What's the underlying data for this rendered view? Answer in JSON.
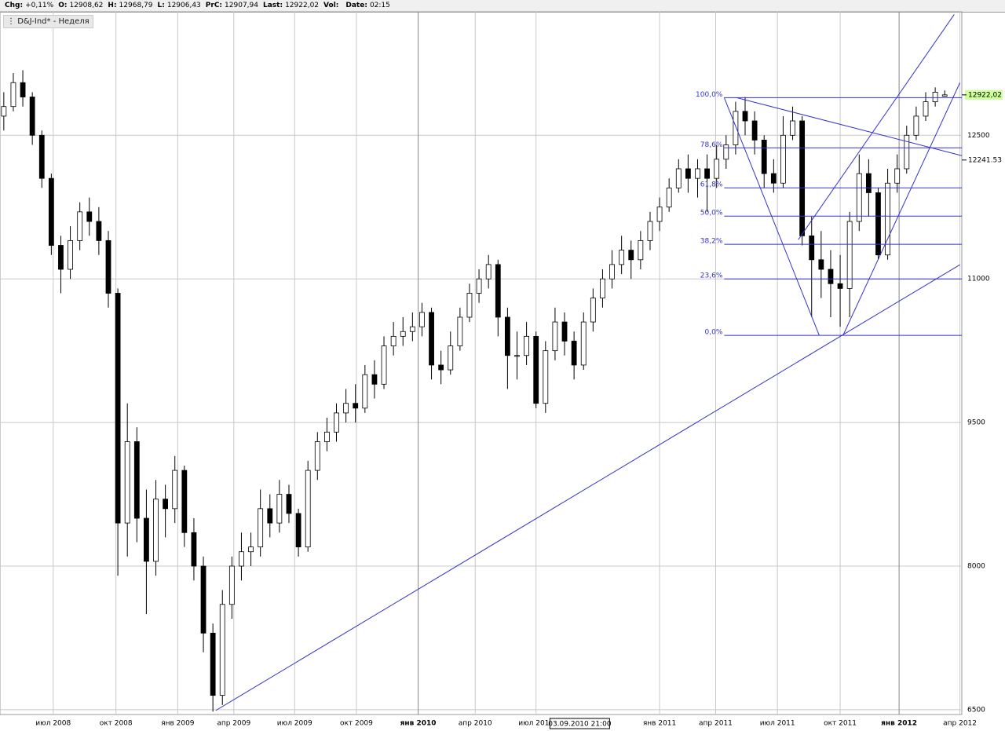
{
  "header": {
    "items": [
      {
        "label": "Chg:",
        "value": "+0,11%"
      },
      {
        "label": "O:",
        "value": "12908,62"
      },
      {
        "label": "H:",
        "value": "12968,79"
      },
      {
        "label": "L:",
        "value": "12906,43"
      },
      {
        "label": "PrC:",
        "value": "12907,94"
      },
      {
        "label": "Last:",
        "value": "12922,02"
      },
      {
        "label": "Vol:",
        "value": ""
      },
      {
        "label": "Date:",
        "value": "02:15"
      }
    ]
  },
  "chart_data": {
    "type": "candlestick",
    "legend": "D&J-Ind* - Неделя",
    "up_color": "#ffffff",
    "down_color": "#000000",
    "line_color": "#3333cc",
    "xlim": [
      -0.4,
      100.8
    ],
    "ylim": [
      6450,
      13790
    ],
    "yticks": [
      6500,
      8000,
      9500,
      11000,
      12500
    ],
    "xticks": [
      {
        "value": 5.2,
        "label": "июл 2008"
      },
      {
        "value": 11.8,
        "label": "окт 2008"
      },
      {
        "value": 18.3,
        "label": "янв 2009"
      },
      {
        "value": 24.2,
        "label": "апр 2009"
      },
      {
        "value": 30.6,
        "label": "июл 2009"
      },
      {
        "value": 37.1,
        "label": "окт 2009"
      },
      {
        "value": 43.6,
        "label": "янв 2010",
        "major": true
      },
      {
        "value": 49.6,
        "label": "апр 2010"
      },
      {
        "value": 56.0,
        "label": "июл 2010"
      },
      {
        "value": 69.0,
        "label": "янв 2011"
      },
      {
        "value": 74.9,
        "label": "апр 2011"
      },
      {
        "value": 81.4,
        "label": "июл 2011"
      },
      {
        "value": 88.0,
        "label": "окт 2011"
      },
      {
        "value": 94.2,
        "label": "янв 2012",
        "major": true
      },
      {
        "value": 100.6,
        "label": "апр 2012"
      }
    ],
    "cursor_label": {
      "value": 60.6,
      "label": "03.09.2010 21:00"
    },
    "open": [
      12700,
      12800,
      13050,
      12900,
      12500,
      12050,
      11350,
      11100,
      11400,
      11700,
      11600,
      11400,
      10850,
      8450,
      9300,
      8500,
      8050,
      8700,
      8600,
      9000,
      8350,
      8000,
      7300,
      6650,
      7600,
      8000,
      8150,
      8200,
      8600,
      8450,
      8750,
      8550,
      8200,
      9000,
      9300,
      9400,
      9600,
      9700,
      9650,
      10000,
      9900,
      10300,
      10400,
      10450,
      10500,
      10650,
      10100,
      10050,
      10300,
      10600,
      10850,
      11000,
      11150,
      10600,
      10200,
      10200,
      10400,
      9700,
      10250,
      10550,
      10350,
      10100,
      10550,
      10800,
      11000,
      11150,
      11300,
      11200,
      11400,
      11600,
      11750,
      11950,
      12150,
      12050,
      12150,
      12050,
      12250,
      12400,
      12750,
      12650,
      12450,
      12100,
      12000,
      12500,
      12650,
      11450,
      11200,
      11100,
      10950,
      10900,
      11600,
      12100,
      11900,
      11250,
      12000,
      12150,
      12500,
      12700,
      12850,
      12908.62
    ],
    "high": [
      12950,
      13150,
      13180,
      12950,
      12550,
      12100,
      11450,
      11550,
      11800,
      11850,
      11750,
      11500,
      10900,
      9700,
      9450,
      8800,
      8900,
      8850,
      9150,
      9050,
      8500,
      8100,
      7400,
      7750,
      8100,
      8350,
      8350,
      8800,
      8750,
      8900,
      8850,
      8600,
      9100,
      9400,
      9550,
      9700,
      9850,
      9900,
      10100,
      10150,
      10400,
      10550,
      10600,
      10650,
      10750,
      10700,
      10250,
      10450,
      10700,
      10950,
      11100,
      11250,
      11200,
      10700,
      10450,
      10550,
      10450,
      10350,
      10700,
      10650,
      10450,
      10650,
      10900,
      11100,
      11300,
      11450,
      11400,
      11500,
      11700,
      11850,
      12050,
      12250,
      12300,
      12250,
      12300,
      12400,
      12500,
      12850,
      12900,
      12750,
      12500,
      12250,
      12700,
      12800,
      12700,
      11650,
      11500,
      11300,
      11250,
      11700,
      12300,
      12250,
      11950,
      12150,
      12300,
      12600,
      12800,
      12950,
      13000,
      12968.79
    ],
    "low": [
      12550,
      12750,
      12800,
      12400,
      11950,
      11250,
      10850,
      11000,
      11300,
      11450,
      11250,
      10700,
      7900,
      8100,
      8250,
      7500,
      7900,
      8300,
      8450,
      8200,
      7850,
      7100,
      6480,
      6550,
      7450,
      7850,
      8000,
      8100,
      8300,
      8350,
      8450,
      8100,
      8150,
      8900,
      9200,
      9300,
      9500,
      9500,
      9600,
      9750,
      9850,
      10200,
      10300,
      10350,
      10400,
      9950,
      9900,
      10000,
      10250,
      10550,
      10750,
      10900,
      10400,
      9850,
      9950,
      10100,
      9650,
      9600,
      10150,
      10200,
      9950,
      10050,
      10450,
      10700,
      10900,
      11050,
      11000,
      11100,
      11300,
      11500,
      11700,
      11900,
      11900,
      11850,
      11700,
      11950,
      12150,
      12300,
      12500,
      12300,
      11950,
      11900,
      11950,
      12450,
      11350,
      10600,
      10800,
      10600,
      10500,
      10600,
      11500,
      11650,
      11200,
      11200,
      11900,
      12100,
      12450,
      12650,
      12800,
      12906.43
    ],
    "close": [
      12800,
      13050,
      12900,
      12500,
      12050,
      11350,
      11100,
      11400,
      11700,
      11600,
      11400,
      10850,
      8450,
      9300,
      8500,
      8050,
      8700,
      8600,
      9000,
      8350,
      8000,
      7300,
      6650,
      7600,
      8000,
      8150,
      8200,
      8600,
      8450,
      8750,
      8550,
      8200,
      9000,
      9300,
      9400,
      9600,
      9700,
      9650,
      10000,
      9900,
      10300,
      10400,
      10450,
      10500,
      10650,
      10100,
      10050,
      10300,
      10600,
      10850,
      11000,
      11150,
      10600,
      10200,
      10200,
      10400,
      9700,
      10250,
      10550,
      10350,
      10100,
      10550,
      10800,
      11000,
      11150,
      11300,
      11200,
      11400,
      11600,
      11750,
      11950,
      12150,
      12050,
      12150,
      12050,
      12250,
      12400,
      12750,
      12650,
      12450,
      12100,
      12000,
      12500,
      12650,
      11450,
      11200,
      11100,
      10950,
      10900,
      11600,
      12100,
      11900,
      11250,
      12000,
      12150,
      12500,
      12700,
      12850,
      12950,
      12922.02
    ],
    "fib_x": [
      75.8,
      100.8
    ],
    "fib_levels": [
      {
        "value": 12893,
        "label": "100,0%"
      },
      {
        "value": 12369,
        "label": "78,6%"
      },
      {
        "value": 11951,
        "label": "61,8%"
      },
      {
        "value": 11656,
        "label": "50,0%"
      },
      {
        "value": 11361,
        "label": "38,2%"
      },
      {
        "value": 11000,
        "label": "23,6%"
      },
      {
        "value": 10410,
        "label": "0,0%"
      }
    ],
    "trendlines": [
      {
        "x": [
          22.3,
          100.6
        ],
        "y": [
          6492,
          11148
        ]
      },
      {
        "x": [
          75.8,
          85.8
        ],
        "y": [
          12893,
          10410
        ]
      },
      {
        "x": [
          77.1,
          100.8
        ],
        "y": [
          12893,
          12287
        ]
      },
      {
        "x": [
          83.6,
          100.0
        ],
        "y": [
          11410,
          13762
        ]
      },
      {
        "x": [
          88.3,
          100.6
        ],
        "y": [
          10410,
          13049
        ]
      }
    ],
    "price_markers": [
      {
        "value": 12922.02,
        "label": "12922,02",
        "color": "#ccff99"
      },
      {
        "value": 12241.53,
        "label": "12241.53",
        "color": "#ffffff"
      }
    ]
  }
}
